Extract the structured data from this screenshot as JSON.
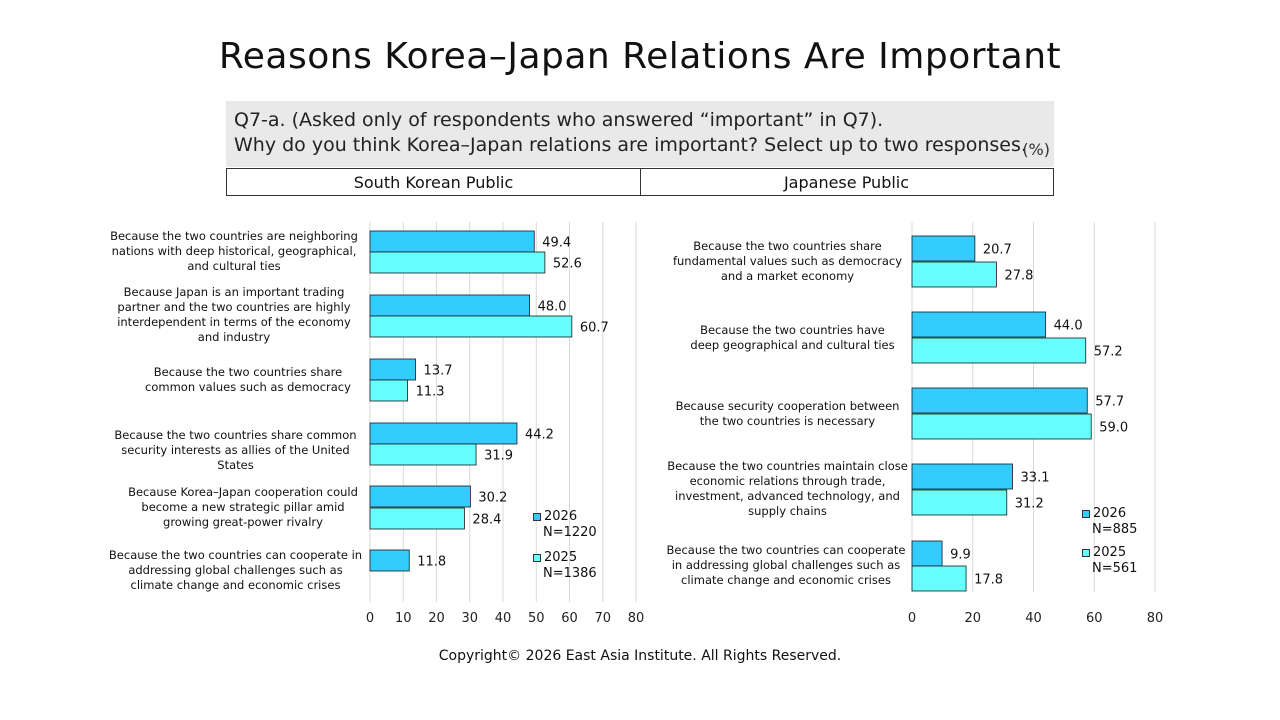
{
  "title": "Reasons Korea–Japan Relations Are Important",
  "question": {
    "line1": "Q7-a. (Asked only of respondents  who answered “important” in Q7).",
    "line2": "Why do you think Korea–Japan relations are important? Select up to two responses.",
    "unit": "(%)"
  },
  "headers": {
    "left": "South Korean Public",
    "right": "Japanese Public"
  },
  "copyright": "Copyright© 2026 East Asia Institute. All Rights Reserved.",
  "colors": {
    "s2026": "#33ccff",
    "s2025": "#66ffff",
    "grid": "#d9d9d9"
  },
  "legend_left": {
    "s2026_label": "2026",
    "s2026_n": "N=1220",
    "s2025_label": "2025",
    "s2025_n": "N=1386"
  },
  "legend_right": {
    "s2026_label": "2026",
    "s2026_n": "N=885",
    "s2025_label": "2025",
    "s2025_n": "N=561"
  },
  "chart_data": [
    {
      "type": "bar",
      "orientation": "horizontal",
      "title": "South Korean Public",
      "categories": [
        "Because the two countries are neighboring nations with deep historical, geographical, and cultural ties",
        "Because Japan is an important trading partner and the two countries are highly interdependent in terms of the economy and industry",
        "Because the two countries share common values such as democracy",
        "Because the two countries share common security interests as allies of the United States",
        "Because Korea–Japan cooperation could become a new strategic pillar amid growing great-power rivalry",
        "Because the two countries can cooperate in addressing global challenges such as climate change and economic crises"
      ],
      "series": [
        {
          "name": "2026",
          "values": [
            49.4,
            48.0,
            13.7,
            44.2,
            30.2,
            11.8
          ],
          "labels": [
            "49.4",
            "48.0",
            "13.7",
            "44.2",
            "30.2",
            "11.8"
          ]
        },
        {
          "name": "2025",
          "values": [
            52.6,
            60.7,
            11.3,
            31.9,
            28.4,
            null
          ],
          "labels": [
            "52.6",
            "60.7",
            "11.3",
            "31.9",
            "28.4",
            ""
          ]
        }
      ],
      "xlim": [
        0,
        80
      ],
      "xticks": [
        "0",
        "10",
        "20",
        "30",
        "40",
        "50",
        "60",
        "70",
        "80"
      ],
      "grid": true
    },
    {
      "type": "bar",
      "orientation": "horizontal",
      "title": "Japanese Public",
      "categories": [
        "Because the two countries share fundamental values such as democracy and a market economy",
        "Because the two countries have deep geographical and cultural ties",
        "Because security cooperation between the two countries is necessary",
        "Because the two countries maintain close economic relations through trade, investment, advanced technology, and supply chains",
        "Because the two countries can cooperate in addressing global challenges such as climate change and economic crises"
      ],
      "series": [
        {
          "name": "2026",
          "values": [
            20.7,
            44.0,
            57.7,
            33.1,
            9.9
          ],
          "labels": [
            "20.7",
            "44.0",
            "57.7",
            "33.1",
            "9.9"
          ]
        },
        {
          "name": "2025",
          "values": [
            27.8,
            57.2,
            59.0,
            31.2,
            17.8
          ],
          "labels": [
            "27.8",
            "57.2",
            "59.0",
            "31.2",
            "17.8"
          ]
        }
      ],
      "xlim": [
        0,
        80
      ],
      "xticks": [
        "0",
        "20",
        "40",
        "60",
        "80"
      ],
      "grid": true
    }
  ]
}
